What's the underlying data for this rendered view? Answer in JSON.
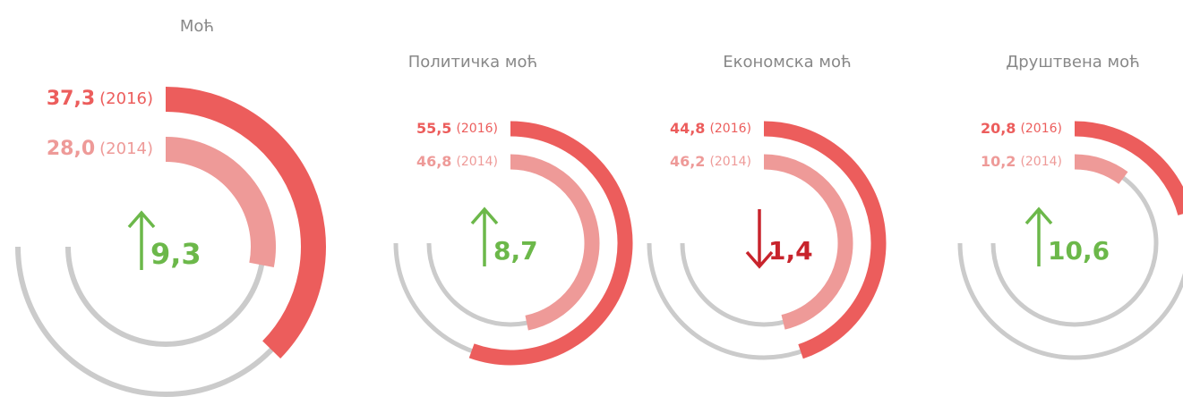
{
  "chart_data": [
    {
      "type": "radial-bar",
      "title": "Моћ",
      "series": [
        {
          "name": "(2016)",
          "color": "#ec5d5c",
          "values": [
            37.3
          ],
          "value_labels": [
            "37,3"
          ]
        },
        {
          "name": "(2014)",
          "color": "#ee9a98",
          "values": [
            28.0
          ],
          "value_labels": [
            "28,0"
          ]
        }
      ],
      "change": {
        "value": 9.3,
        "label": "9,3"
      },
      "ylim": [
        0,
        100
      ]
    },
    {
      "type": "radial-bar",
      "title": "Политичка моћ",
      "series": [
        {
          "name": "(2016)",
          "color": "#ec5d5c",
          "values": [
            55.5
          ],
          "value_labels": [
            "55,5"
          ]
        },
        {
          "name": "(2014)",
          "color": "#ee9a98",
          "values": [
            46.8
          ],
          "value_labels": [
            "46,8"
          ]
        }
      ],
      "change": {
        "value": 8.7,
        "label": "8,7"
      },
      "ylim": [
        0,
        100
      ]
    },
    {
      "type": "radial-bar",
      "title": "Економска моћ",
      "series": [
        {
          "name": "(2016)",
          "color": "#ec5d5c",
          "values": [
            44.8
          ],
          "value_labels": [
            "44,8"
          ]
        },
        {
          "name": "(2014)",
          "color": "#ee9a98",
          "values": [
            46.2
          ],
          "value_labels": [
            "46,2"
          ]
        }
      ],
      "change": {
        "value": -1.4,
        "label": "1,4"
      },
      "ylim": [
        0,
        100
      ]
    },
    {
      "type": "radial-bar",
      "title": "Друштвена моћ",
      "series": [
        {
          "name": "(2016)",
          "color": "#ec5d5c",
          "values": [
            20.8
          ],
          "value_labels": [
            "20,8"
          ]
        },
        {
          "name": "(2014)",
          "color": "#ee9a98",
          "values": [
            10.2
          ],
          "value_labels": [
            "10,2"
          ]
        }
      ],
      "change": {
        "value": 10.6,
        "label": "10,6"
      },
      "ylim": [
        0,
        100
      ]
    }
  ]
}
